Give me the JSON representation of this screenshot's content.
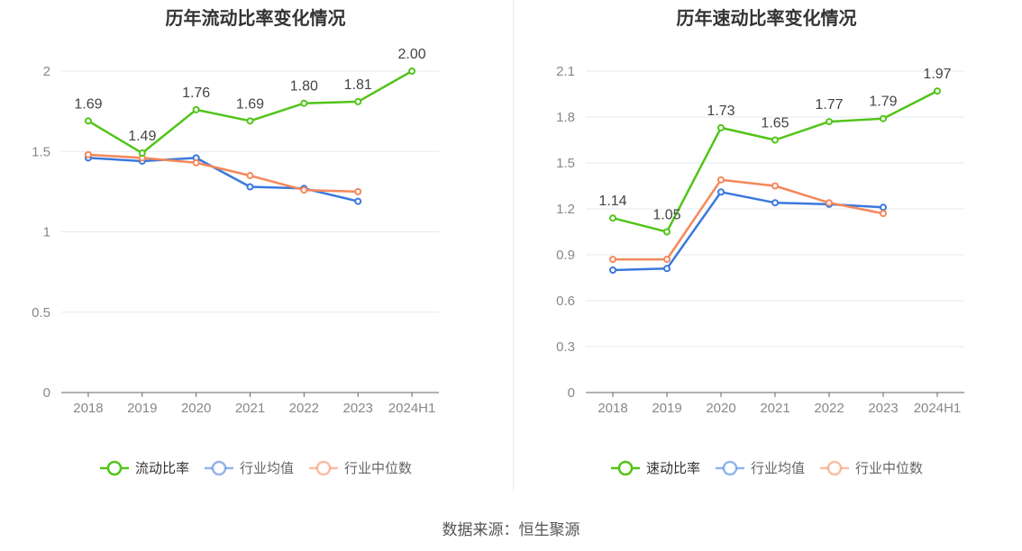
{
  "chart_data": [
    {
      "type": "line",
      "title": "历年流动比率变化情况",
      "categories": [
        "2018",
        "2019",
        "2020",
        "2021",
        "2022",
        "2023",
        "2024H1"
      ],
      "ylim": [
        0,
        2
      ],
      "yticks": [
        "0",
        "0.5",
        "1",
        "1.5",
        "2"
      ],
      "ytick_values": [
        0,
        0.5,
        1,
        1.5,
        2
      ],
      "grid": true,
      "legend_position": "bottom",
      "series": [
        {
          "name": "流动比率",
          "color": "#52c41a",
          "values": [
            1.69,
            1.49,
            1.76,
            1.69,
            1.8,
            1.81,
            2.0
          ],
          "labels": [
            "1.69",
            "1.49",
            "1.76",
            "1.69",
            "1.80",
            "1.81",
            "2.00"
          ]
        },
        {
          "name": "行业均值",
          "color": "#3a78dc",
          "values": [
            1.46,
            1.44,
            1.46,
            1.28,
            1.27,
            1.19,
            null
          ]
        },
        {
          "name": "行业中位数",
          "color": "#f5875a",
          "values": [
            1.48,
            1.46,
            1.43,
            1.35,
            1.26,
            1.25,
            null
          ]
        }
      ]
    },
    {
      "type": "line",
      "title": "历年速动比率变化情况",
      "categories": [
        "2018",
        "2019",
        "2020",
        "2021",
        "2022",
        "2023",
        "2024H1"
      ],
      "ylim": [
        0,
        2.1
      ],
      "yticks": [
        "0",
        "0.3",
        "0.6",
        "0.9",
        "1.2",
        "1.5",
        "1.8",
        "2.1"
      ],
      "ytick_values": [
        0,
        0.3,
        0.6,
        0.9,
        1.2,
        1.5,
        1.8,
        2.1
      ],
      "grid": true,
      "legend_position": "bottom",
      "series": [
        {
          "name": "速动比率",
          "color": "#52c41a",
          "values": [
            1.14,
            1.05,
            1.73,
            1.65,
            1.77,
            1.79,
            1.97
          ],
          "labels": [
            "1.14",
            "1.05",
            "1.73",
            "1.65",
            "1.77",
            "1.79",
            "1.97"
          ]
        },
        {
          "name": "行业均值",
          "color": "#3a78dc",
          "values": [
            0.8,
            0.81,
            1.31,
            1.24,
            1.23,
            1.21,
            null
          ]
        },
        {
          "name": "行业中位数",
          "color": "#f5875a",
          "values": [
            0.87,
            0.87,
            1.39,
            1.35,
            1.24,
            1.17,
            null
          ]
        }
      ]
    }
  ],
  "source": "数据来源：恒生聚源"
}
